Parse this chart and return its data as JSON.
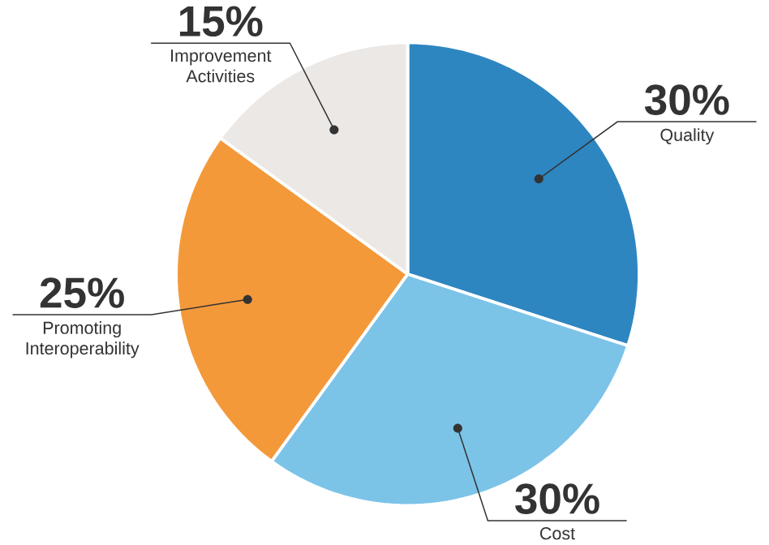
{
  "chart_data": {
    "type": "pie",
    "categories": [
      "Quality",
      "Cost",
      "Promoting Interoperability",
      "Improvement Activities"
    ],
    "values": [
      30,
      30,
      25,
      15
    ],
    "value_labels": [
      "30%",
      "30%",
      "25%",
      "15%"
    ],
    "colors": [
      "#2e86c1",
      "#7cc3e8",
      "#f4993a",
      "#ebe8e6"
    ]
  }
}
